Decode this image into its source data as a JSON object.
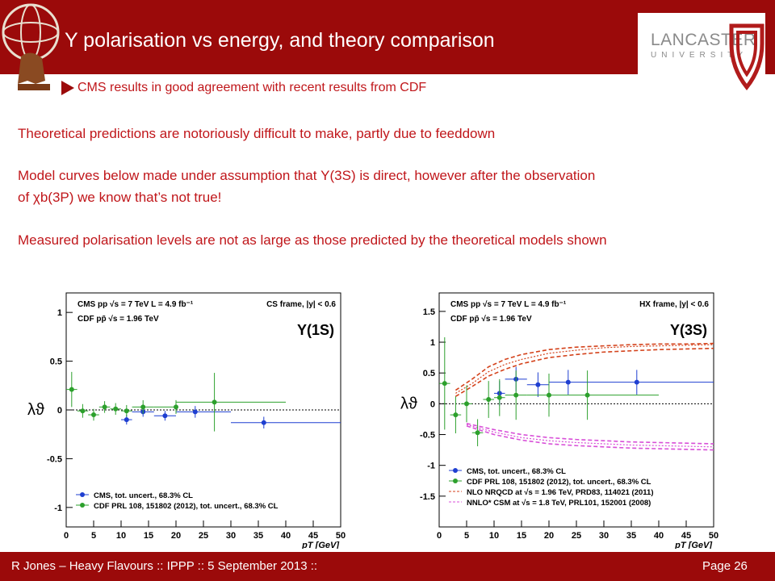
{
  "header": {
    "title": "Υ polarisation vs energy, and theory comparison",
    "university_name": "LANCASTER",
    "university_sub": "UNIVERSITY"
  },
  "body": {
    "line1": "CMS results  in good agreement with recent results from CDF",
    "line2": "Theoretical predictions are  notoriously difficult to make, partly due to feeddown",
    "line3a": "Model curves below made under assumption that Υ(3S) is direct, however after the observation",
    "line3b": "of χb(3P) we know that’s not true!",
    "line4": "Measured polarisation levels are not as large as those predicted by the theoretical models shown"
  },
  "footer": {
    "text": "R Jones – Heavy Flavours  ::  IPPP  :: 5 September 2013  ::",
    "page": "Page 26"
  },
  "colors": {
    "brand": "#9b0a0a",
    "text_red": "#c0161a",
    "cms": "#1f3fd1",
    "cdf": "#2ca02c",
    "nrqcd": "#d4421b",
    "csm": "#d84fd8"
  },
  "chart_data": [
    {
      "type": "scatter",
      "ylabel": "λϑ",
      "xlabel": "pT [GeV]",
      "xlim": [
        0,
        50
      ],
      "ylim": [
        -1.2,
        1.2
      ],
      "xticks": [
        "0",
        "5",
        "10",
        "15",
        "20",
        "25",
        "30",
        "35",
        "40",
        "45",
        "50"
      ],
      "yticks": [
        "1",
        "0.5",
        "0",
        "-0.5",
        "-1"
      ],
      "header_lines": [
        "CMS  pp  √s = 7 TeV  L = 4.9 fb⁻¹",
        "CDF  pp̄  √s = 1.96 TeV"
      ],
      "frame_label": "CS frame, |y| < 0.6",
      "state_label": "Υ(1S)",
      "series": [
        {
          "name": "CMS, tot. uncert., 68.3% CL",
          "points": [
            [
              11,
              -0.1
            ],
            [
              14,
              -0.02
            ],
            [
              18,
              -0.06
            ],
            [
              23.5,
              -0.02
            ],
            [
              36,
              -0.13
            ]
          ],
          "xerr": [
            [
              10,
              12
            ],
            [
              12,
              16
            ],
            [
              16,
              20
            ],
            [
              20,
              30
            ],
            [
              30,
              50
            ]
          ],
          "yerr": [
            0.05,
            0.05,
            0.05,
            0.06,
            0.06
          ]
        },
        {
          "name": "CDF PRL 108, 151802 (2012), tot. uncert., 68.3% CL",
          "points": [
            [
              1,
              0.21
            ],
            [
              3,
              -0.01
            ],
            [
              5,
              -0.05
            ],
            [
              7,
              0.03
            ],
            [
              9,
              0.01
            ],
            [
              11,
              -0.01
            ],
            [
              14,
              0.03
            ],
            [
              20,
              0.03
            ],
            [
              27,
              0.08
            ]
          ],
          "xerr": [
            [
              0,
              2
            ],
            [
              2,
              4
            ],
            [
              4,
              6
            ],
            [
              6,
              8
            ],
            [
              8,
              10
            ],
            [
              10,
              12
            ],
            [
              12,
              16
            ],
            [
              16,
              20
            ],
            [
              20,
              40
            ]
          ],
          "yerr": [
            0.18,
            0.07,
            0.06,
            0.06,
            0.06,
            0.06,
            0.07,
            0.07,
            0.3
          ]
        }
      ]
    },
    {
      "type": "scatter",
      "ylabel": "λϑ",
      "xlabel": "pT [GeV]",
      "xlim": [
        0,
        50
      ],
      "ylim": [
        -2.0,
        1.8
      ],
      "xticks": [
        "0",
        "5",
        "10",
        "15",
        "20",
        "25",
        "30",
        "35",
        "40",
        "45",
        "50"
      ],
      "yticks": [
        "1.5",
        "1",
        "0.5",
        "0",
        "-0.5",
        "-1",
        "-1.5"
      ],
      "header_lines": [
        "CMS  pp  √s = 7 TeV  L = 4.9 fb⁻¹",
        "CDF  pp̄  √s = 1.96 TeV"
      ],
      "frame_label": "HX frame, |y| < 0.6",
      "state_label": "Υ(3S)",
      "series": [
        {
          "name": "CMS, tot. uncert., 68.3% CL",
          "points": [
            [
              11,
              0.17
            ],
            [
              14,
              0.4
            ],
            [
              18,
              0.31
            ],
            [
              23.5,
              0.35
            ],
            [
              36,
              0.35
            ]
          ],
          "xerr": [
            [
              10,
              12
            ],
            [
              12,
              16
            ],
            [
              16,
              20
            ],
            [
              20,
              30
            ],
            [
              30,
              50
            ]
          ],
          "yerr": [
            0.2,
            0.2,
            0.2,
            0.2,
            0.2
          ]
        },
        {
          "name": "CDF PRL 108, 151802 (2012), tot. uncert., 68.3% CL",
          "points": [
            [
              1,
              0.33
            ],
            [
              3,
              -0.18
            ],
            [
              5,
              0.0
            ],
            [
              7,
              -0.47
            ],
            [
              9,
              0.07
            ],
            [
              11,
              0.1
            ],
            [
              14,
              0.14
            ],
            [
              20,
              0.14
            ],
            [
              27,
              0.14
            ]
          ],
          "xerr": [
            [
              0,
              2
            ],
            [
              2,
              4
            ],
            [
              4,
              6
            ],
            [
              6,
              8
            ],
            [
              8,
              10
            ],
            [
              10,
              12
            ],
            [
              12,
              16
            ],
            [
              16,
              20
            ],
            [
              20,
              40
            ]
          ],
          "yerr": [
            0.75,
            0.3,
            0.3,
            0.22,
            0.3,
            0.3,
            0.4,
            0.35,
            0.4
          ]
        },
        {
          "name": "NLO NRQCD at √s = 1.96 TeV, PRD83, 114021 (2011)",
          "band_x": [
            3,
            6,
            9,
            12,
            15,
            20,
            25,
            30,
            35,
            40,
            45,
            50
          ],
          "band_low": [
            0.12,
            0.28,
            0.45,
            0.56,
            0.65,
            0.75,
            0.8,
            0.84,
            0.86,
            0.88,
            0.89,
            0.9
          ],
          "band_mid": [
            0.17,
            0.33,
            0.52,
            0.64,
            0.72,
            0.82,
            0.87,
            0.91,
            0.93,
            0.94,
            0.95,
            0.96
          ],
          "band_high": [
            0.22,
            0.4,
            0.6,
            0.72,
            0.8,
            0.88,
            0.92,
            0.94,
            0.96,
            0.97,
            0.97,
            0.98
          ]
        },
        {
          "name": "NNLO* CSM at √s = 1.8 TeV, PRL101, 152001 (2008)",
          "band_x": [
            5,
            10,
            15,
            20,
            25,
            30,
            35,
            40,
            45,
            50
          ],
          "band_low": [
            -0.36,
            -0.5,
            -0.59,
            -0.65,
            -0.68,
            -0.7,
            -0.72,
            -0.73,
            -0.74,
            -0.75
          ],
          "band_mid": [
            -0.34,
            -0.46,
            -0.55,
            -0.6,
            -0.63,
            -0.65,
            -0.67,
            -0.68,
            -0.69,
            -0.7
          ],
          "band_high": [
            -0.32,
            -0.42,
            -0.5,
            -0.55,
            -0.58,
            -0.6,
            -0.62,
            -0.63,
            -0.64,
            -0.65
          ]
        }
      ]
    }
  ]
}
